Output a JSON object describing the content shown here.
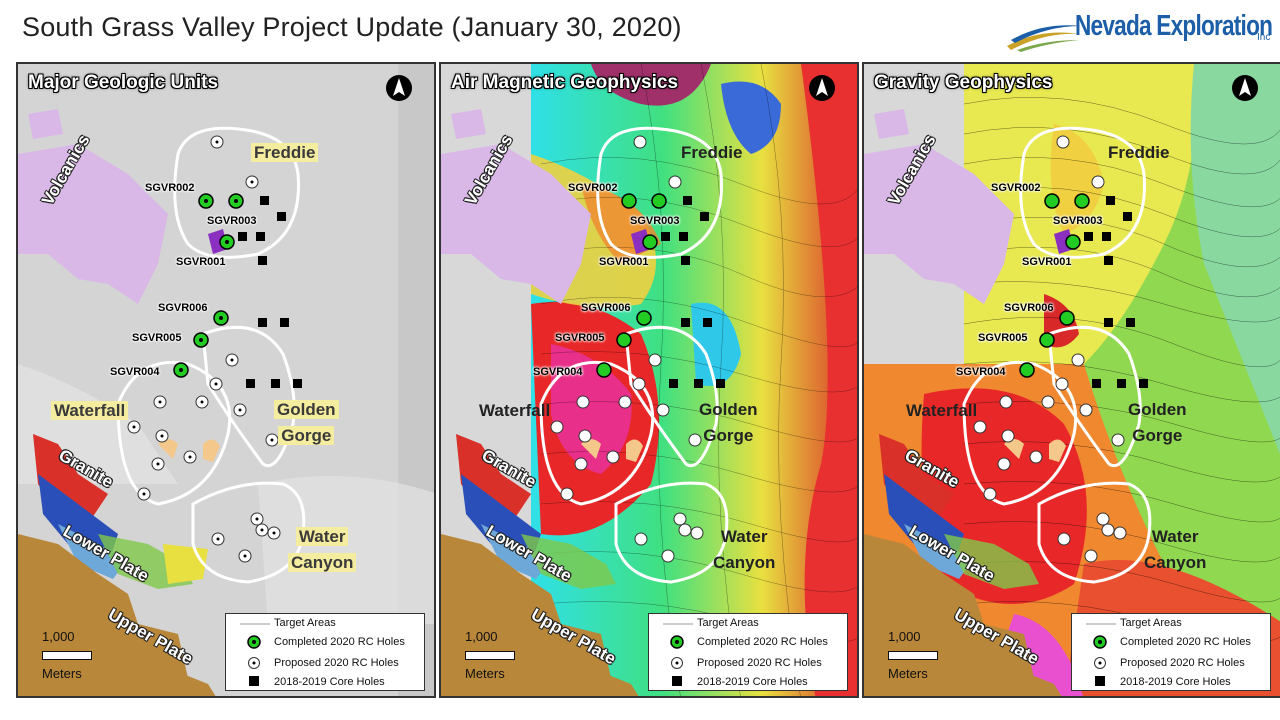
{
  "title": "South Grass Valley Project Update (January 30, 2020)",
  "logo": {
    "name": "Nevada Exploration",
    "suffix": "Inc"
  },
  "panels": [
    {
      "title": "Major Geologic Units",
      "style": "geology"
    },
    {
      "title": "Air Magnetic Geophysics",
      "style": "magnetics"
    },
    {
      "title": "Gravity Geophysics",
      "style": "gravity"
    }
  ],
  "labels": {
    "sgvr001": "SGVR001",
    "sgvr002": "SGVR002",
    "sgvr003": "SGVR003",
    "sgvr004": "SGVR004",
    "sgvr005": "SGVR005",
    "sgvr006": "SGVR006",
    "freddie": "Freddie",
    "waterfall": "Waterfall",
    "golden": "Golden",
    "gorge": "Gorge",
    "water": "Water",
    "canyon": "Canyon",
    "volcanics": "Volcanics",
    "granite": "Granite",
    "lower_plate": "Lower Plate",
    "upper_plate": "Upper Plate"
  },
  "legend": {
    "target_areas": "Target Areas",
    "completed": "Completed 2020 RC Holes",
    "proposed": "Proposed 2020 RC Holes",
    "core": "2018-2019 Core Holes"
  },
  "scale": {
    "value": "1,000",
    "unit": "Meters"
  },
  "colors": {
    "completed_hole": "#22cc22",
    "target_outline": "#ffffff",
    "volcanics": "#d9b8e8",
    "upper_plate": "#b8873a",
    "logo_blue": "#1c5fa8"
  }
}
